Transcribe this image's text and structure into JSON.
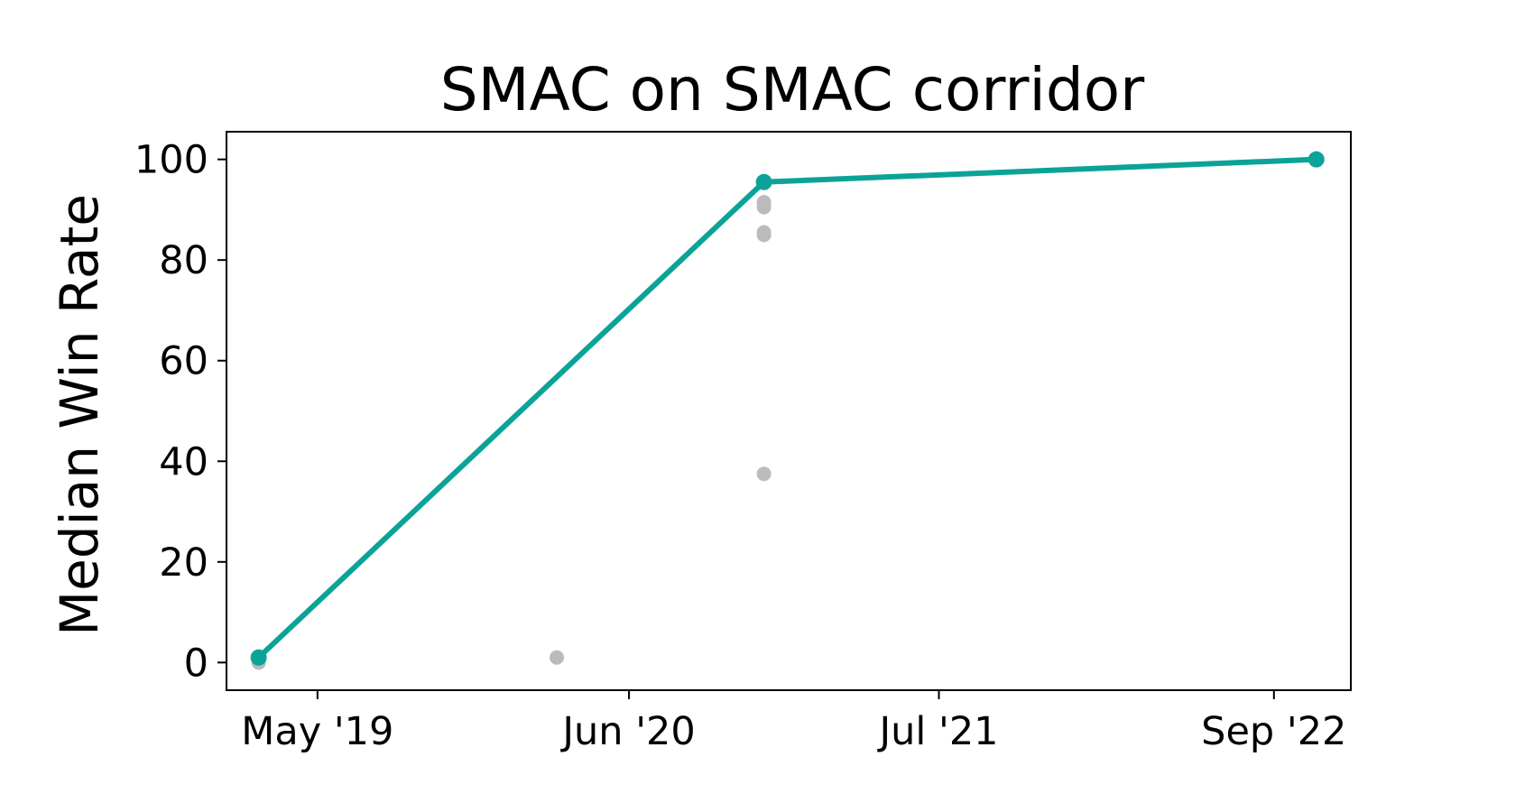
{
  "chart_data": {
    "type": "line",
    "title": "SMAC on SMAC corridor",
    "xlabel": "",
    "ylabel": "Median Win Rate",
    "x_ticks": [
      "May '19",
      "Jun '20",
      "Jul '21",
      "Sep '22"
    ],
    "y_ticks": [
      "0",
      "20",
      "40",
      "60",
      "80",
      "100"
    ],
    "ylim": [
      -5.5,
      105.5
    ],
    "xlim": [
      "2019-01-05",
      "2022-12-08"
    ],
    "grid": false,
    "legend": "none",
    "series": [
      {
        "points": [
          {
            "x": "2019-02-15",
            "y": 1
          },
          {
            "x": "2020-11-20",
            "y": 95.5
          },
          {
            "x": "2022-10-25",
            "y": 100
          }
        ],
        "color": "#0ba397"
      }
    ],
    "scatter": {
      "color": "#bbbbbb",
      "points": [
        {
          "x": "2019-02-15",
          "y": 0
        },
        {
          "x": "2019-02-15",
          "y": 1
        },
        {
          "x": "2020-03-01",
          "y": 1
        },
        {
          "x": "2020-11-20",
          "y": 37.5
        },
        {
          "x": "2020-11-20",
          "y": 85
        },
        {
          "x": "2020-11-20",
          "y": 85.5
        },
        {
          "x": "2020-11-20",
          "y": 90.5
        },
        {
          "x": "2020-11-20",
          "y": 91.5
        }
      ]
    }
  }
}
